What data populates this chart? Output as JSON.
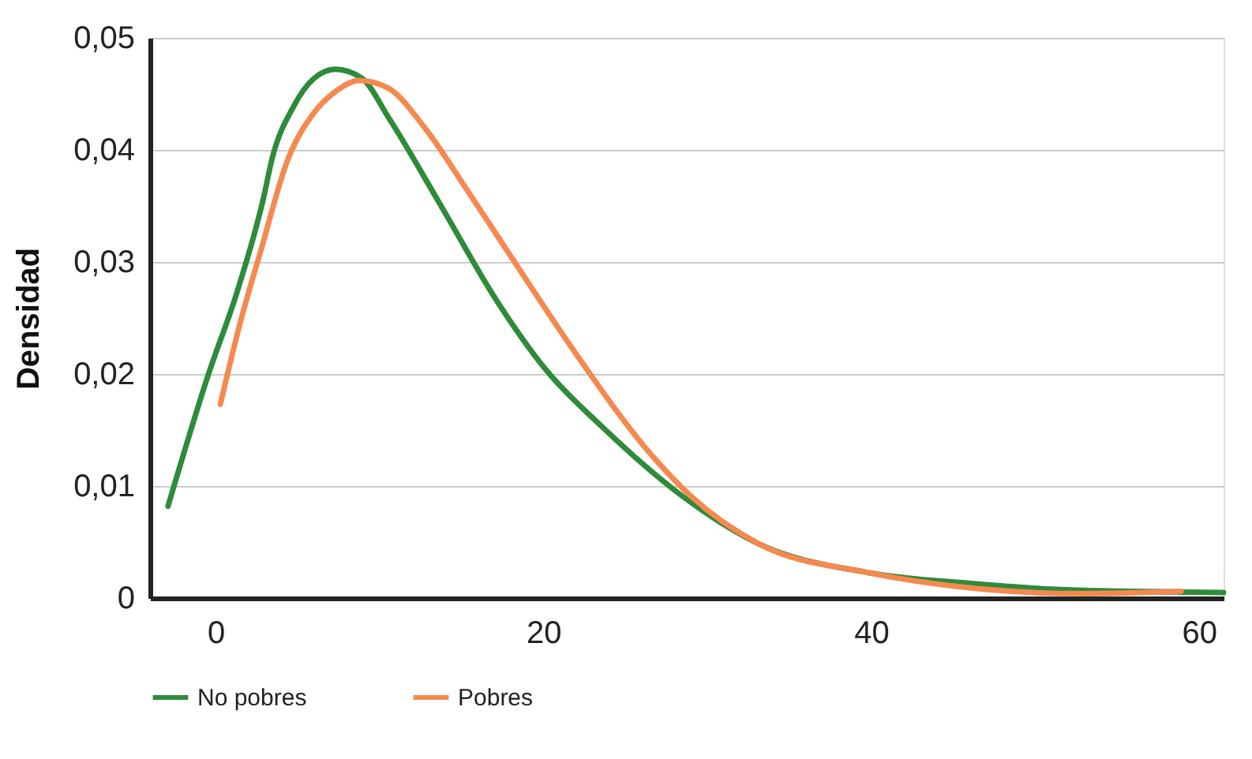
{
  "chart_data": {
    "type": "line",
    "ylabel": "Densidad",
    "xlim": [
      -4,
      61.5
    ],
    "xticks": [
      0,
      20,
      40,
      60
    ],
    "ylim": [
      0,
      0.05
    ],
    "yticks": [
      {
        "value": 0,
        "label": "0"
      },
      {
        "value": 0.01,
        "label": "0,01"
      },
      {
        "value": 0.02,
        "label": "0,02"
      },
      {
        "value": 0.03,
        "label": "0,03"
      },
      {
        "value": 0.04,
        "label": "0,04"
      },
      {
        "value": 0.05,
        "label": "0,05"
      }
    ],
    "grid": "y",
    "legend": "bottom",
    "line_style": "solid",
    "marker": "none",
    "series": [
      {
        "name": "No pobres",
        "color": "#2e8b3a",
        "x": [
          -2.9,
          -0.45,
          1.33,
          2.94,
          3.43,
          4.73,
          6.02,
          7.31,
          8.93,
          10.55,
          13.8,
          17.0,
          20.2,
          23.5,
          28.3,
          33.2,
          39.7,
          46.1,
          52.6,
          61.5
        ],
        "values": [
          0.0082,
          0.0199,
          0.0274,
          0.0358,
          0.0391,
          0.0438,
          0.0464,
          0.0472,
          0.0464,
          0.0429,
          0.0349,
          0.0269,
          0.0203,
          0.0154,
          0.0093,
          0.0048,
          0.0023,
          0.0013,
          0.0007,
          0.0005
        ]
      },
      {
        "name": "Pobres",
        "color": "#f5894f",
        "x": [
          0.29,
          1.49,
          2.78,
          4.4,
          6.0,
          7.31,
          8.77,
          10.55,
          12.8,
          15.4,
          18.6,
          21.8,
          26.7,
          29.0,
          33.2,
          39.7,
          46.1,
          52.6,
          58.9
        ],
        "values": [
          0.0173,
          0.0245,
          0.0311,
          0.0391,
          0.0433,
          0.0452,
          0.0462,
          0.0455,
          0.0419,
          0.0363,
          0.0292,
          0.0222,
          0.0126,
          0.0091,
          0.0048,
          0.0023,
          0.0009,
          0.0004,
          0.0006
        ]
      }
    ]
  }
}
